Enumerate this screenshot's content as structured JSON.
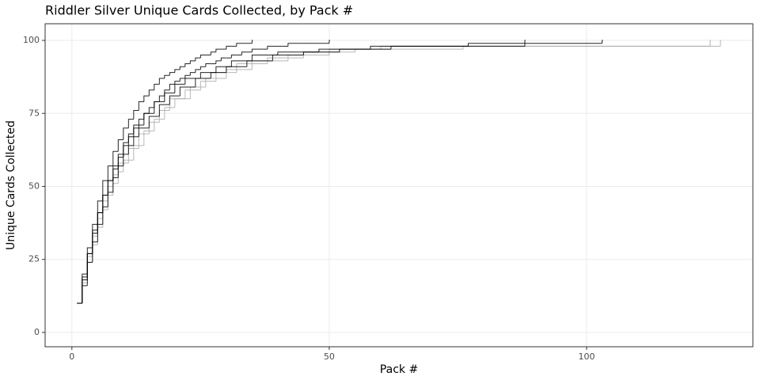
{
  "chart_data": {
    "type": "line",
    "step": true,
    "title": "Riddler Silver Unique Cards Collected, by Pack #",
    "x_label": "Pack #",
    "y_label": "Unique Cards Collected",
    "xlim": [
      -5.2,
      132.3
    ],
    "ylim": [
      -4.9,
      105.7
    ],
    "xticks": [
      0,
      50,
      100
    ],
    "yticks": [
      0,
      25,
      50,
      75,
      100
    ],
    "grid": true,
    "series": [
      {
        "color": "#aaaaaa",
        "x": [
          1,
          2,
          3,
          4,
          5,
          6,
          7,
          8,
          9,
          10,
          12,
          14,
          16,
          18,
          20,
          23,
          26,
          30,
          35,
          42,
          50,
          60,
          126
        ],
        "values": [
          10,
          17,
          24,
          30,
          36,
          42,
          47,
          51,
          55,
          59,
          64,
          69,
          73,
          77,
          80,
          84,
          87,
          90,
          93,
          95,
          97,
          98,
          100
        ]
      },
      {
        "color": "#aaaaaa",
        "x": [
          1,
          2,
          3,
          4,
          5,
          6,
          7,
          8,
          9,
          11,
          13,
          15,
          17,
          19,
          22,
          25,
          28,
          32,
          38,
          45,
          55,
          76,
          124
        ],
        "values": [
          10,
          18,
          26,
          33,
          39,
          45,
          50,
          54,
          58,
          63,
          68,
          72,
          76,
          80,
          83,
          86,
          89,
          92,
          94,
          96,
          97,
          98,
          100
        ]
      },
      {
        "color": "#000000",
        "x": [
          1,
          2,
          3,
          4,
          5,
          6,
          7,
          8,
          9,
          10,
          11,
          12,
          14,
          16,
          18,
          20,
          22,
          25,
          28,
          31,
          35,
          40,
          48,
          58,
          77,
          103
        ],
        "values": [
          10,
          18,
          27,
          34,
          41,
          47,
          52,
          57,
          61,
          65,
          68,
          71,
          75,
          79,
          82,
          85,
          87,
          89,
          91,
          93,
          95,
          96,
          97,
          98,
          99,
          100
        ]
      },
      {
        "color": "#000000",
        "x": [
          1,
          2,
          3,
          4,
          5,
          6,
          7,
          8,
          9,
          10,
          11,
          12,
          13,
          14,
          15,
          16,
          17,
          18,
          19,
          20,
          21,
          22,
          23,
          24,
          25,
          26,
          27,
          28,
          29,
          30,
          31,
          32,
          33,
          34,
          35
        ],
        "values": [
          10,
          20,
          29,
          37,
          45,
          52,
          57,
          62,
          66,
          70,
          73,
          76,
          79,
          81,
          83,
          85,
          87,
          88,
          89,
          90,
          91,
          92,
          93,
          94,
          95,
          95,
          96,
          97,
          97,
          98,
          98,
          99,
          99,
          99,
          100
        ]
      },
      {
        "color": "#000000",
        "x": [
          1,
          2,
          3,
          4,
          5,
          6,
          7,
          8,
          9,
          10,
          11,
          12,
          13,
          14,
          15,
          16,
          17,
          18,
          19,
          20,
          21,
          22,
          23,
          24,
          25,
          26,
          27,
          28,
          29,
          30,
          31,
          32,
          33,
          34,
          35,
          36,
          37,
          38,
          39,
          40,
          41,
          42,
          43,
          44,
          45,
          46,
          47,
          48,
          49,
          50
        ],
        "values": [
          10,
          19,
          27,
          35,
          41,
          47,
          52,
          56,
          60,
          64,
          67,
          70,
          73,
          75,
          77,
          79,
          81,
          83,
          85,
          86,
          87,
          88,
          89,
          90,
          91,
          92,
          92,
          93,
          94,
          94,
          95,
          95,
          96,
          96,
          97,
          97,
          97,
          98,
          98,
          98,
          98,
          99,
          99,
          99,
          99,
          99,
          99,
          99,
          99,
          100
        ]
      },
      {
        "color": "#000000",
        "x": [
          1,
          2,
          3,
          4,
          5,
          6,
          7,
          8,
          9,
          10,
          11,
          12,
          13,
          15,
          17,
          19,
          21,
          24,
          27,
          30,
          34,
          39,
          45,
          52,
          62,
          88
        ],
        "values": [
          10,
          16,
          24,
          31,
          37,
          43,
          48,
          53,
          57,
          61,
          64,
          67,
          70,
          74,
          78,
          81,
          84,
          87,
          89,
          91,
          93,
          95,
          96,
          97,
          98,
          100
        ]
      }
    ]
  }
}
